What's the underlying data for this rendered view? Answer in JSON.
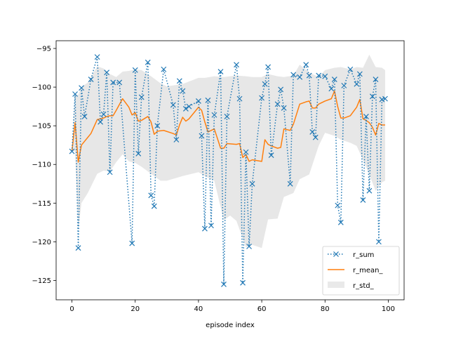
{
  "chart_data": {
    "type": "line",
    "title": "",
    "xlabel": "episode index",
    "ylabel": "",
    "xlim": [
      -5,
      105
    ],
    "ylim": [
      -127.5,
      -94
    ],
    "xticks": [
      0,
      20,
      40,
      60,
      80,
      100
    ],
    "yticks": [
      -95,
      -100,
      -105,
      -110,
      -115,
      -120,
      -125
    ],
    "grid": false,
    "legend": "bottom-right",
    "colors": {
      "r_sum": "#1f77b4",
      "r_mean": "#ff7f0e",
      "r_std": "#d3d3d3"
    },
    "series": [
      {
        "name": "r_sum",
        "style": "dotted-x",
        "x": [
          0,
          1,
          2,
          3,
          4,
          6,
          8,
          9,
          10,
          11,
          12,
          13,
          15,
          19,
          20,
          21,
          22,
          24,
          25,
          26,
          27,
          29,
          32,
          33,
          34,
          35,
          36,
          37,
          40,
          41,
          42,
          43,
          44,
          45,
          47,
          48,
          49,
          52,
          53,
          54,
          55,
          56,
          57,
          60,
          61,
          62,
          63,
          65,
          66,
          67,
          69,
          70,
          72,
          74,
          75,
          76,
          77,
          78,
          80,
          82,
          83,
          84,
          85,
          86,
          88,
          90,
          91,
          92,
          93,
          94,
          95,
          96,
          97,
          98,
          99
        ],
        "y": [
          -108.3,
          -100.9,
          -120.8,
          -100.1,
          -103.8,
          -99.0,
          -96.1,
          -104.5,
          -103.5,
          -98.1,
          -111.0,
          -99.4,
          -99.4,
          -120.2,
          -97.8,
          -108.6,
          -101.3,
          -96.8,
          -114.0,
          -115.4,
          -105.0,
          -97.7,
          -102.3,
          -106.8,
          -99.2,
          -100.5,
          -102.8,
          -102.5,
          -101.8,
          -106.3,
          -118.3,
          -101.7,
          -117.9,
          -103.6,
          -98.0,
          -125.5,
          -103.8,
          -97.1,
          -101.5,
          -125.3,
          -108.4,
          -120.6,
          -112.5,
          -101.4,
          -99.6,
          -97.4,
          -108.8,
          -102.2,
          -100.3,
          -102.7,
          -112.5,
          -98.4,
          -98.7,
          -97.1,
          -98.5,
          -105.8,
          -106.5,
          -98.5,
          -98.6,
          -100.2,
          -99.0,
          -115.3,
          -117.5,
          -99.8,
          -97.7,
          -99.6,
          -98.3,
          -114.6,
          -103.8,
          -113.4,
          -101.2,
          -99.0,
          -120.0,
          -101.6,
          -101.5
        ]
      },
      {
        "name": "r_mean_",
        "style": "line",
        "x": [
          0,
          1,
          2,
          3,
          6,
          8,
          10,
          11,
          12,
          13,
          14,
          16,
          18,
          19,
          20,
          21,
          22,
          24,
          25,
          26,
          27,
          29,
          32,
          33,
          34,
          35,
          36,
          37,
          40,
          41,
          42,
          43,
          44,
          45,
          47,
          48,
          49,
          52,
          53,
          54,
          55,
          56,
          57,
          60,
          61,
          62,
          63,
          65,
          66,
          67,
          69,
          70,
          72,
          74,
          75,
          76,
          77,
          78,
          80,
          82,
          83,
          84,
          85,
          86,
          88,
          90,
          91,
          92,
          93,
          94,
          95,
          96,
          97,
          98,
          99
        ],
        "y": [
          -108.3,
          -104.6,
          -109.7,
          -107.5,
          -106.0,
          -104.2,
          -104.0,
          -103.8,
          -103.7,
          -103.7,
          -103.0,
          -101.5,
          -102.6,
          -103.6,
          -103.3,
          -104.4,
          -104.3,
          -103.8,
          -104.5,
          -106.1,
          -105.7,
          -105.6,
          -106.0,
          -106.2,
          -104.9,
          -103.9,
          -104.4,
          -104.1,
          -102.6,
          -103.0,
          -104.5,
          -105.8,
          -105.6,
          -105.4,
          -107.9,
          -107.9,
          -107.3,
          -107.4,
          -107.3,
          -109.1,
          -108.7,
          -109.6,
          -109.4,
          -109.6,
          -106.8,
          -107.4,
          -107.6,
          -107.9,
          -107.8,
          -105.4,
          -105.6,
          -104.8,
          -102.2,
          -101.9,
          -101.8,
          -102.7,
          -102.7,
          -102.2,
          -101.8,
          -101.5,
          -100.5,
          -102.5,
          -104.0,
          -104.0,
          -103.7,
          -102.6,
          -101.6,
          -104.1,
          -104.3,
          -104.6,
          -105.2,
          -106.2,
          -104.7,
          -104.9,
          -104.9
        ]
      },
      {
        "name": "r_std_",
        "style": "fill",
        "x": [
          0,
          1,
          2,
          3,
          5,
          8,
          10,
          12,
          14,
          16,
          18,
          20,
          22,
          25,
          28,
          30,
          35,
          40,
          42,
          45,
          48,
          50,
          52,
          55,
          57,
          60,
          62,
          65,
          67,
          70,
          72,
          75,
          78,
          80,
          83,
          85,
          88,
          90,
          92,
          94,
          96,
          98,
          99
        ],
        "upper": [
          -108.3,
          -101.0,
          -101.0,
          -100.0,
          -99.4,
          -97.3,
          -97.6,
          -98.3,
          -98.7,
          -98.0,
          -97.9,
          -97.7,
          -97.8,
          -98.6,
          -99.5,
          -99.9,
          -99.6,
          -98.8,
          -98.8,
          -98.6,
          -98.7,
          -98.6,
          -98.5,
          -98.6,
          -98.7,
          -98.7,
          -98.3,
          -98.6,
          -98.7,
          -98.5,
          -97.1,
          -98.1,
          -98.7,
          -97.8,
          -97.5,
          -97.4,
          -97.7,
          -97.4,
          -97.5,
          -95.8,
          -97.4,
          -97.5,
          -97.8
        ],
        "lower": [
          -108.3,
          -108.3,
          -118.5,
          -115.0,
          -113.7,
          -111.2,
          -110.8,
          -110.9,
          -109.7,
          -108.7,
          -109.6,
          -109.8,
          -110.3,
          -111.2,
          -112.1,
          -112.1,
          -111.5,
          -111.0,
          -111.5,
          -112.1,
          -117.2,
          -116.6,
          -117.3,
          -120.7,
          -120.4,
          -120.8,
          -117.1,
          -117.0,
          -114.2,
          -113.7,
          -111.9,
          -111.3,
          -107.6,
          -105.9,
          -106.3,
          -106.8,
          -107.2,
          -107.6,
          -109.4,
          -111.3,
          -113.4,
          -112.3,
          -112.1
        ]
      }
    ]
  }
}
